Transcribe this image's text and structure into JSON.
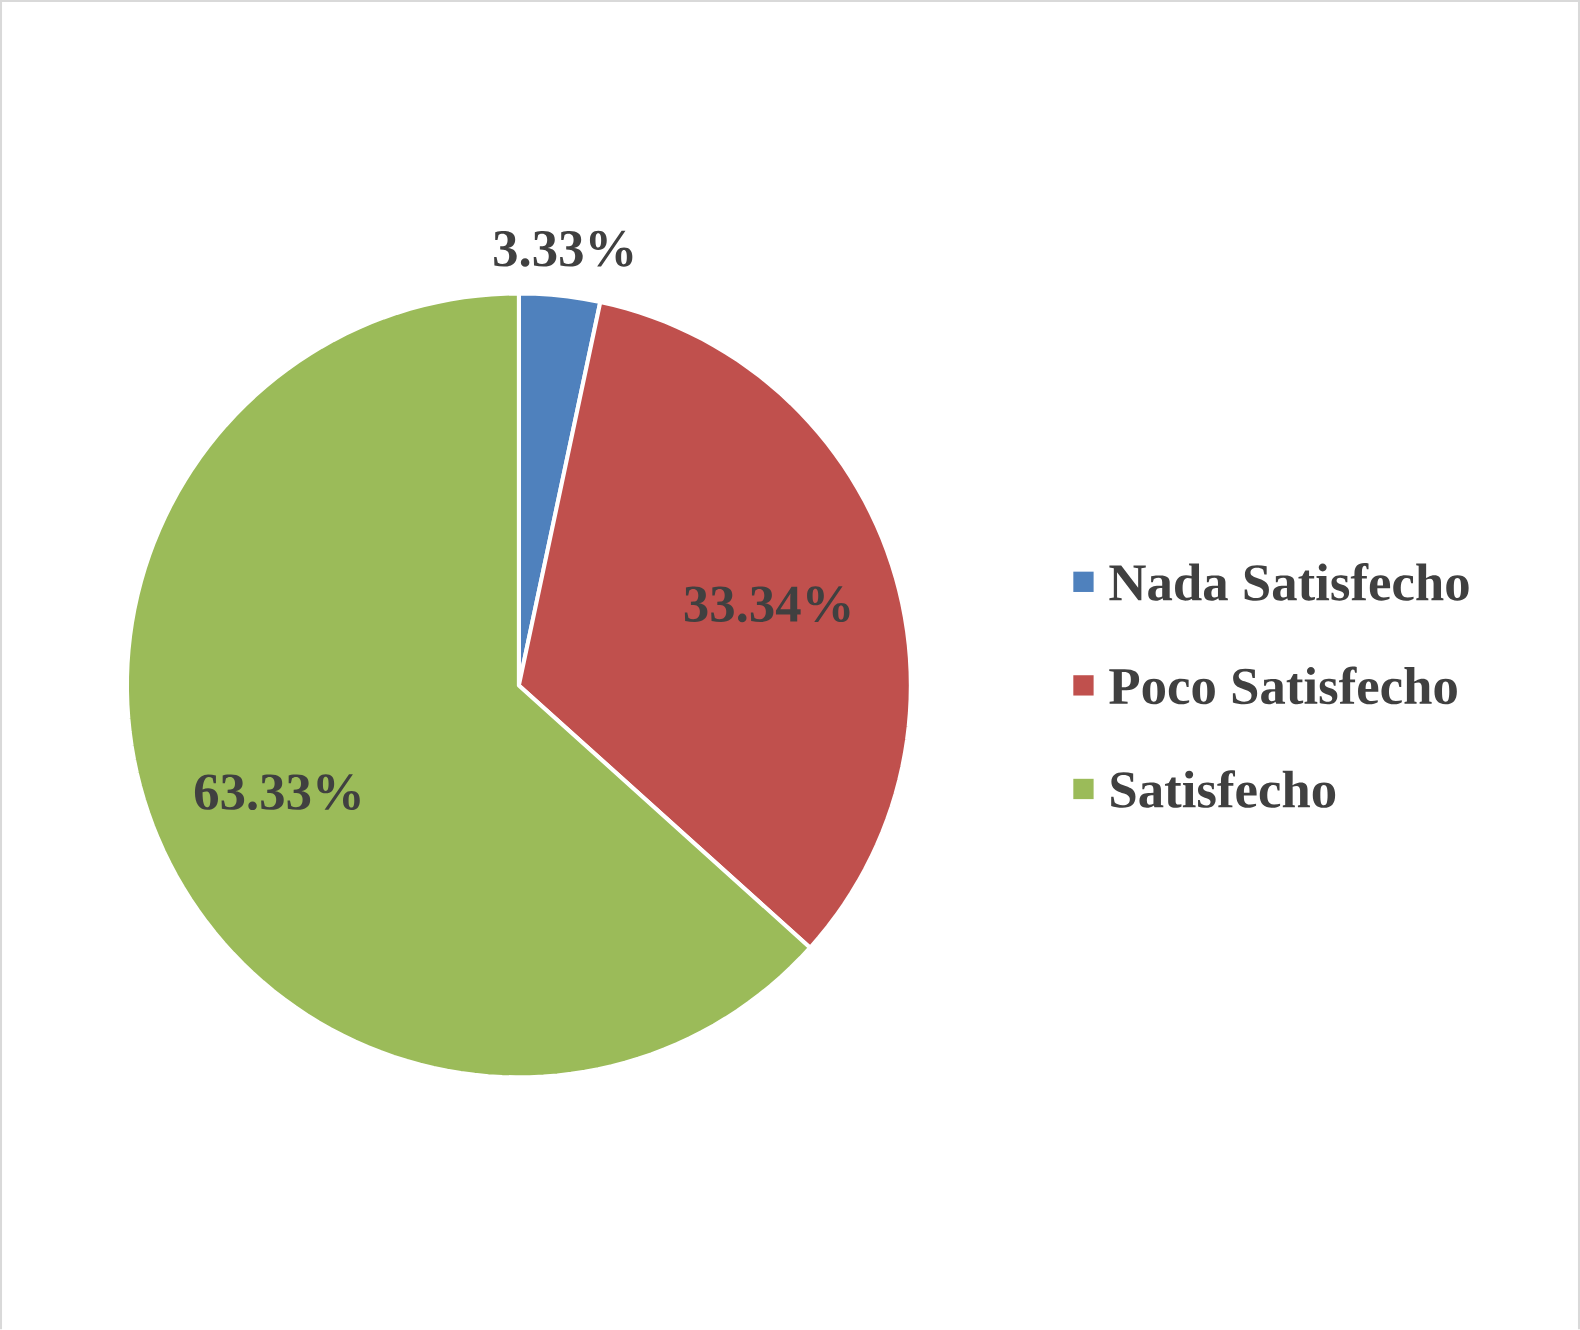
{
  "chart_data": {
    "type": "pie",
    "categories": [
      "Nada Satisfecho",
      "Poco Satisfecho",
      "Satisfecho"
    ],
    "values": [
      3.33,
      33.34,
      63.33
    ],
    "colors": [
      "#4f81bd",
      "#c0504d",
      "#9bbb59"
    ],
    "value_labels": [
      "3.33%",
      "33.34%",
      "63.33%"
    ],
    "legend": "right"
  }
}
